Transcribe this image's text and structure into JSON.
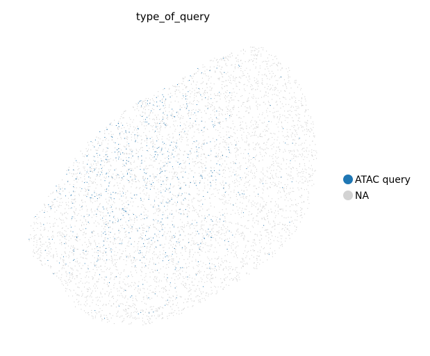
{
  "chart_data": {
    "type": "scatter",
    "title": "type_of_query",
    "xlabel": "",
    "ylabel": "",
    "axes_visible": false,
    "grid": false,
    "legend_placement": "right",
    "series": [
      {
        "name": "ATAC query",
        "color": "#1f77b4",
        "description": "query cells concentrated in the upper-left half of the embedding"
      },
      {
        "name": "NA",
        "color": "#d3d3d3",
        "description": "reference cells filling the whole embedding, denser toward the right and lower regions"
      }
    ]
  }
}
